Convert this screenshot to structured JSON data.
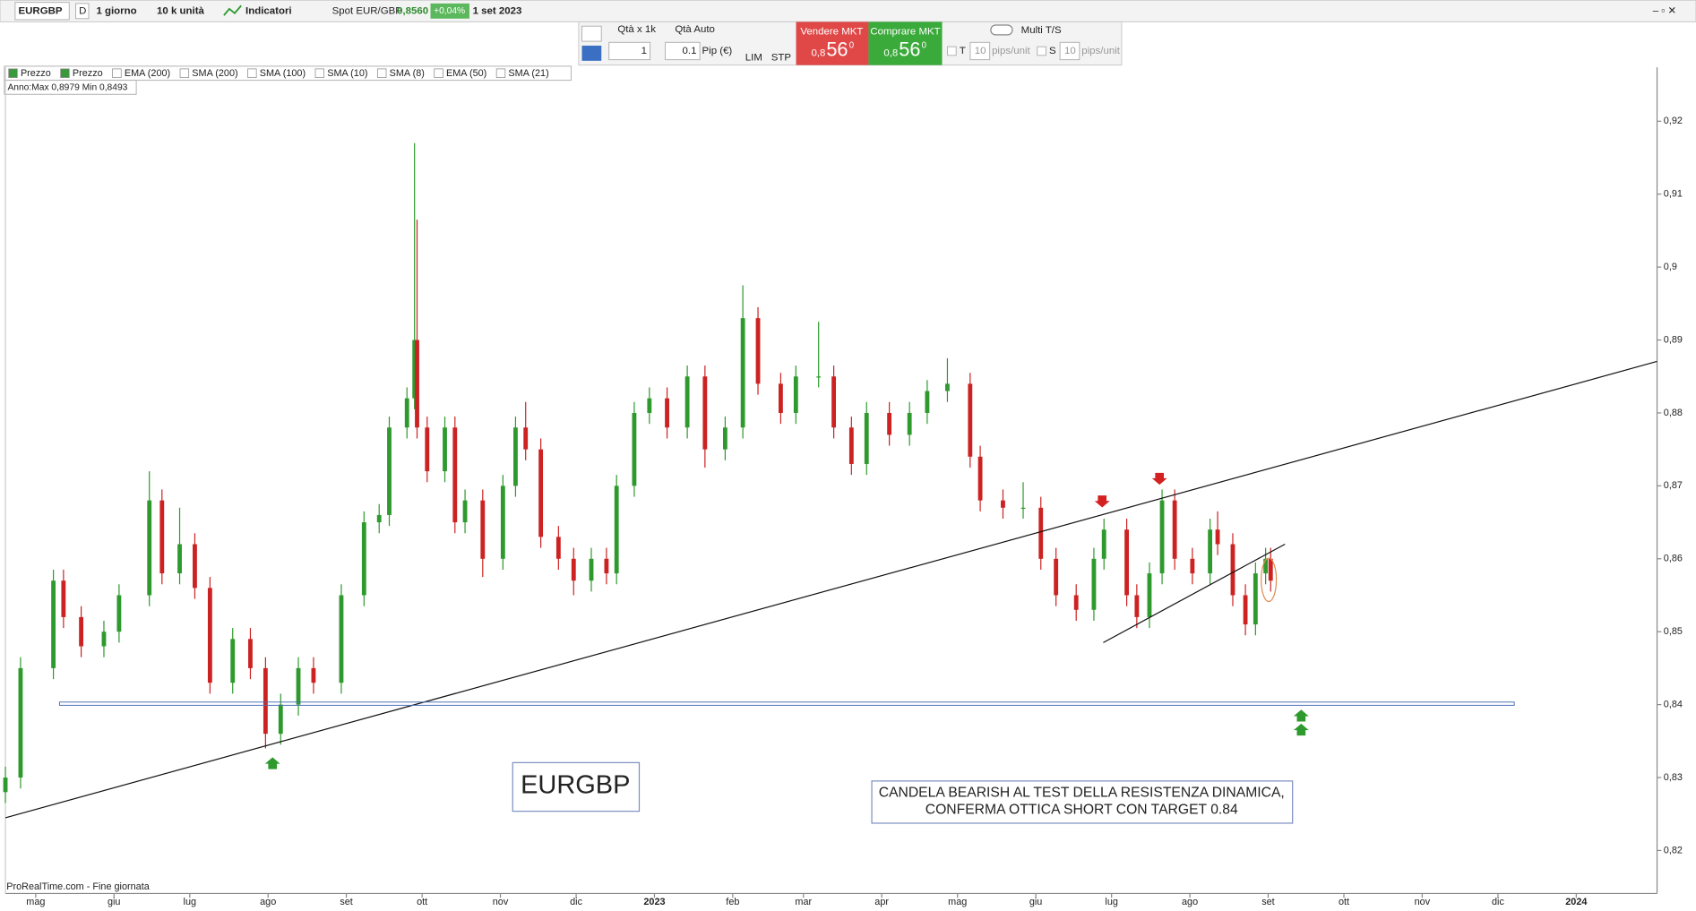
{
  "toolbar": {
    "symbol": "EURGBP",
    "period_letter": "D",
    "period": "1 giorno",
    "units": "10 k unità",
    "indicators": "Indicatori",
    "spot_label": "Spot EUR/GBP",
    "spot_value": "0,8560",
    "change": "+0,04%",
    "date": "1 set 2023"
  },
  "order_panel": {
    "qty_label": "Qtà  x 1k",
    "qty_auto": "Qtà Auto",
    "qty": "1",
    "pip_value": "0.1",
    "pip_label": "Pip (€)",
    "lim": "LIM",
    "stp": "STP",
    "sell_label": "Vendere MKT",
    "sell_prefix": "0,8",
    "sell_big": "56",
    "sell_sup": "0",
    "buy_label": "Comprare MKT",
    "buy_prefix": "0,8",
    "buy_big": "56",
    "buy_sup": "0",
    "multi_ts": "Multi T/S",
    "t_label": "T",
    "t_value": "10",
    "t_unit": "pips/unit",
    "s_label": "S",
    "s_value": "10",
    "s_unit": "pips/unit"
  },
  "indicators": [
    "Prezzo",
    "Prezzo",
    "EMA (200)",
    "SMA (200)",
    "SMA (100)",
    "SMA (10)",
    "SMA (8)",
    "EMA (50)",
    "SMA (21)"
  ],
  "year_info": "Anno:Max 0,8979 Min 0,8493",
  "annotations": {
    "symbol_box": "EURGBP",
    "note_line1": "CANDELA BEARISH AL TEST DELLA RESISTENZA DINAMICA,",
    "note_line2": "CONFERMA OTTICA SHORT CON TARGET 0.84"
  },
  "footer": "ProRealTime.com - Fine giornata",
  "chart_data": {
    "type": "candlestick",
    "up_color": "#2e9a2e",
    "down_color": "#cc2222",
    "xlim": [
      -12,
      642
    ],
    "ylim": [
      0.8141,
      0.9274
    ],
    "xticks": [
      {
        "value": 0,
        "label": "mag"
      },
      {
        "value": 31,
        "label": "giu"
      },
      {
        "value": 61,
        "label": "lug"
      },
      {
        "value": 92,
        "label": "ago"
      },
      {
        "value": 123,
        "label": "set"
      },
      {
        "value": 153,
        "label": "ott"
      },
      {
        "value": 184,
        "label": "nov"
      },
      {
        "value": 214,
        "label": "dic"
      },
      {
        "value": 245,
        "label": "2023"
      },
      {
        "value": 276,
        "label": "feb"
      },
      {
        "value": 304,
        "label": "mar"
      },
      {
        "value": 335,
        "label": "apr"
      },
      {
        "value": 365,
        "label": "mag"
      },
      {
        "value": 396,
        "label": "giu"
      },
      {
        "value": 426,
        "label": "lug"
      },
      {
        "value": 457,
        "label": "ago"
      },
      {
        "value": 488,
        "label": "set"
      },
      {
        "value": 518,
        "label": "ott"
      },
      {
        "value": 549,
        "label": "nov"
      },
      {
        "value": 579,
        "label": "dic"
      },
      {
        "value": 610,
        "label": "2024"
      }
    ],
    "yticks": [
      {
        "value": 0.82,
        "label": "0,82"
      },
      {
        "value": 0.83,
        "label": "0,83"
      },
      {
        "value": 0.84,
        "label": "0,84"
      },
      {
        "value": 0.85,
        "label": "0,85"
      },
      {
        "value": 0.86,
        "label": "0,86"
      },
      {
        "value": 0.87,
        "label": "0,87"
      },
      {
        "value": 0.88,
        "label": "0,88"
      },
      {
        "value": 0.89,
        "label": "0,89"
      },
      {
        "value": 0.9,
        "label": "0,9"
      },
      {
        "value": 0.91,
        "label": "0,91"
      },
      {
        "value": 0.92,
        "label": "0,92"
      }
    ],
    "x": [
      -12,
      -6,
      7,
      11,
      18,
      27,
      33,
      45,
      50,
      57,
      63,
      69,
      78,
      85,
      91,
      97,
      104,
      110,
      121,
      130,
      136,
      140,
      147,
      150,
      151,
      155,
      162,
      166,
      170,
      177,
      185,
      190,
      194,
      200,
      207,
      213,
      220,
      226,
      230,
      237,
      243,
      250,
      258,
      265,
      273,
      280,
      286,
      295,
      301,
      310,
      316,
      323,
      329,
      338,
      346,
      353,
      361,
      370,
      374,
      383,
      391,
      398,
      404,
      412,
      419,
      423,
      432,
      436,
      441,
      446,
      451,
      458,
      465,
      468,
      474,
      479,
      483,
      487,
      489
    ],
    "open": [
      0.828,
      0.83,
      0.845,
      0.857,
      0.852,
      0.848,
      0.85,
      0.855,
      0.868,
      0.858,
      0.862,
      0.856,
      0.843,
      0.849,
      0.845,
      0.836,
      0.84,
      0.845,
      0.843,
      0.855,
      0.865,
      0.866,
      0.878,
      0.882,
      0.89,
      0.878,
      0.872,
      0.878,
      0.865,
      0.868,
      0.86,
      0.87,
      0.878,
      0.875,
      0.863,
      0.86,
      0.857,
      0.86,
      0.858,
      0.87,
      0.88,
      0.882,
      0.878,
      0.885,
      0.875,
      0.878,
      0.893,
      0.884,
      0.88,
      0.885,
      0.885,
      0.878,
      0.873,
      0.88,
      0.877,
      0.88,
      0.883,
      0.884,
      0.874,
      0.868,
      0.867,
      0.867,
      0.86,
      0.855,
      0.853,
      0.86,
      0.864,
      0.855,
      0.852,
      0.858,
      0.868,
      0.86,
      0.858,
      0.864,
      0.862,
      0.855,
      0.851,
      0.858,
      0.86
    ],
    "high": [
      0.8315,
      0.8465,
      0.8585,
      0.8585,
      0.8535,
      0.8515,
      0.8565,
      0.872,
      0.8695,
      0.867,
      0.8635,
      0.8575,
      0.8505,
      0.8505,
      0.8465,
      0.8415,
      0.8465,
      0.8465,
      0.8565,
      0.8665,
      0.8675,
      0.8795,
      0.8835,
      0.917,
      0.9065,
      0.8795,
      0.8795,
      0.8795,
      0.8695,
      0.8695,
      0.8715,
      0.8795,
      0.8815,
      0.8765,
      0.8645,
      0.8615,
      0.8615,
      0.8615,
      0.8715,
      0.8815,
      0.8835,
      0.8835,
      0.8865,
      0.8865,
      0.8795,
      0.8975,
      0.8945,
      0.8855,
      0.8865,
      0.8925,
      0.8865,
      0.8795,
      0.8815,
      0.8815,
      0.8815,
      0.8845,
      0.8875,
      0.8855,
      0.8755,
      0.8695,
      0.8705,
      0.8685,
      0.8615,
      0.8565,
      0.8615,
      0.8655,
      0.8655,
      0.8565,
      0.8595,
      0.8695,
      0.8695,
      0.8615,
      0.8655,
      0.8665,
      0.8635,
      0.8565,
      0.8595,
      0.8615,
      0.8615
    ],
    "low": [
      0.8265,
      0.8285,
      0.8435,
      0.8505,
      0.8465,
      0.8465,
      0.8485,
      0.8535,
      0.8565,
      0.8565,
      0.8545,
      0.8415,
      0.8415,
      0.8435,
      0.834,
      0.8345,
      0.8385,
      0.8415,
      0.8415,
      0.8535,
      0.8635,
      0.8645,
      0.8765,
      0.8805,
      0.8765,
      0.8705,
      0.8705,
      0.8635,
      0.8635,
      0.8575,
      0.8585,
      0.8685,
      0.8735,
      0.8615,
      0.8585,
      0.855,
      0.8555,
      0.8565,
      0.8565,
      0.8685,
      0.8785,
      0.8765,
      0.8765,
      0.8725,
      0.8735,
      0.8765,
      0.8825,
      0.8785,
      0.8785,
      0.8835,
      0.8765,
      0.8715,
      0.8715,
      0.8755,
      0.8755,
      0.8785,
      0.8815,
      0.8725,
      0.8665,
      0.8655,
      0.8655,
      0.8585,
      0.8535,
      0.8515,
      0.8515,
      0.8585,
      0.8535,
      0.8505,
      0.8505,
      0.8565,
      0.8585,
      0.8565,
      0.8565,
      0.8605,
      0.8535,
      0.8495,
      0.8495,
      0.8565,
      0.8555
    ],
    "close": [
      0.83,
      0.845,
      0.857,
      0.852,
      0.848,
      0.85,
      0.855,
      0.868,
      0.858,
      0.862,
      0.856,
      0.843,
      0.849,
      0.845,
      0.836,
      0.84,
      0.845,
      0.843,
      0.855,
      0.865,
      0.866,
      0.878,
      0.882,
      0.89,
      0.878,
      0.872,
      0.878,
      0.865,
      0.868,
      0.86,
      0.87,
      0.878,
      0.875,
      0.863,
      0.86,
      0.857,
      0.86,
      0.858,
      0.87,
      0.88,
      0.882,
      0.878,
      0.885,
      0.875,
      0.878,
      0.893,
      0.884,
      0.88,
      0.885,
      0.885,
      0.878,
      0.873,
      0.88,
      0.877,
      0.88,
      0.883,
      0.884,
      0.874,
      0.868,
      0.867,
      0.867,
      0.86,
      0.855,
      0.853,
      0.86,
      0.864,
      0.855,
      0.852,
      0.858,
      0.868,
      0.86,
      0.858,
      0.864,
      0.862,
      0.855,
      0.851,
      0.858,
      0.86,
      0.857
    ]
  }
}
